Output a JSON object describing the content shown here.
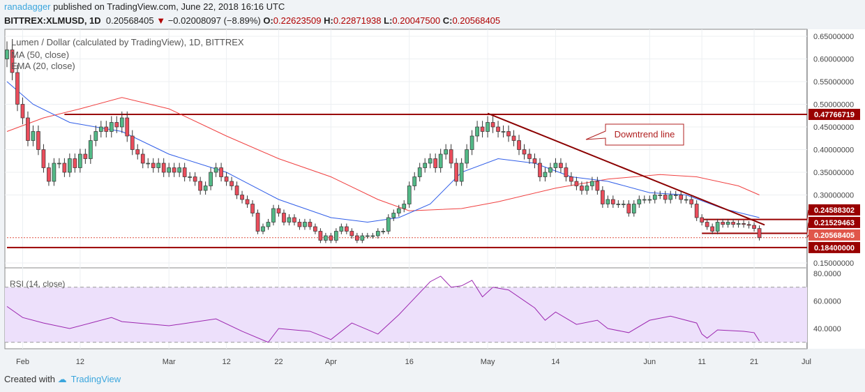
{
  "header": {
    "user": "ranadagger",
    "published": "published on TradingView.com, June 22, 2018 16:16 UTC",
    "symbol": "BITTREX:XLMUSD, 1D",
    "last": "0.20568405",
    "change": "−0.02008097 (−8.89%)",
    "o_label": "O:",
    "o": "0.22623509",
    "h_label": "H:",
    "h": "0.22871938",
    "l_label": "L:",
    "l": "0.20047500",
    "c_label": "C:",
    "c": "0.20568405"
  },
  "legend": {
    "title": "Lumen / Dollar (calculated by TradingView), 1D, BITTREX",
    "ma": "MA (50, close)",
    "ema": "EMA (20, close)",
    "rsi": "RSI (14, close)"
  },
  "footer": {
    "created": "Created with",
    "brand": "TradingView"
  },
  "colors": {
    "up": "#53b987",
    "down": "#eb4d5c",
    "ma": "#f04040",
    "ema": "#2f5de8",
    "level": "#990000",
    "rsi": "#9c27b0",
    "rsi_band": "#ede0fb"
  },
  "chart_data": [
    {
      "type": "candlestick",
      "start_date": "2018-01-29",
      "closes": [
        0.62,
        0.57,
        0.5,
        0.47,
        0.42,
        0.44,
        0.4,
        0.36,
        0.33,
        0.37,
        0.37,
        0.35,
        0.38,
        0.36,
        0.39,
        0.38,
        0.42,
        0.44,
        0.45,
        0.44,
        0.46,
        0.45,
        0.47,
        0.43,
        0.4,
        0.39,
        0.37,
        0.37,
        0.36,
        0.37,
        0.35,
        0.36,
        0.35,
        0.36,
        0.34,
        0.34,
        0.33,
        0.31,
        0.32,
        0.35,
        0.36,
        0.34,
        0.33,
        0.32,
        0.3,
        0.29,
        0.28,
        0.26,
        0.22,
        0.23,
        0.24,
        0.27,
        0.26,
        0.24,
        0.25,
        0.24,
        0.23,
        0.24,
        0.23,
        0.22,
        0.2,
        0.21,
        0.2,
        0.22,
        0.23,
        0.22,
        0.21,
        0.2,
        0.21,
        0.21,
        0.21,
        0.22,
        0.22,
        0.25,
        0.26,
        0.27,
        0.28,
        0.32,
        0.34,
        0.36,
        0.37,
        0.38,
        0.36,
        0.39,
        0.4,
        0.37,
        0.33,
        0.37,
        0.4,
        0.43,
        0.45,
        0.44,
        0.46,
        0.45,
        0.44,
        0.44,
        0.43,
        0.42,
        0.4,
        0.39,
        0.38,
        0.37,
        0.34,
        0.35,
        0.36,
        0.37,
        0.36,
        0.34,
        0.33,
        0.32,
        0.31,
        0.32,
        0.33,
        0.31,
        0.28,
        0.29,
        0.28,
        0.28,
        0.28,
        0.26,
        0.28,
        0.29,
        0.29,
        0.29,
        0.3,
        0.3,
        0.29,
        0.3,
        0.3,
        0.29,
        0.29,
        0.28,
        0.25,
        0.24,
        0.23,
        0.22,
        0.24,
        0.235,
        0.24,
        0.235,
        0.237,
        0.235,
        0.233,
        0.226,
        0.2057
      ],
      "ema20": [
        [
          "2018-01-29",
          0.55
        ],
        [
          "2018-02-03",
          0.5
        ],
        [
          "2018-02-10",
          0.46
        ],
        [
          "2018-02-20",
          0.44
        ],
        [
          "2018-03-01",
          0.39
        ],
        [
          "2018-03-12",
          0.35
        ],
        [
          "2018-03-22",
          0.29
        ],
        [
          "2018-04-01",
          0.25
        ],
        [
          "2018-04-08",
          0.24
        ],
        [
          "2018-04-14",
          0.25
        ],
        [
          "2018-04-20",
          0.28
        ],
        [
          "2018-04-26",
          0.35
        ],
        [
          "2018-05-03",
          0.38
        ],
        [
          "2018-05-10",
          0.37
        ],
        [
          "2018-05-17",
          0.34
        ],
        [
          "2018-05-24",
          0.33
        ],
        [
          "2018-06-01",
          0.305
        ],
        [
          "2018-06-08",
          0.3
        ],
        [
          "2018-06-15",
          0.27
        ],
        [
          "2018-06-22",
          0.25
        ]
      ],
      "ma50": [
        [
          "2018-01-29",
          0.44
        ],
        [
          "2018-02-05",
          0.47
        ],
        [
          "2018-02-12",
          0.49
        ],
        [
          "2018-02-20",
          0.515
        ],
        [
          "2018-03-01",
          0.49
        ],
        [
          "2018-03-12",
          0.43
        ],
        [
          "2018-03-22",
          0.38
        ],
        [
          "2018-04-01",
          0.34
        ],
        [
          "2018-04-10",
          0.29
        ],
        [
          "2018-04-16",
          0.265
        ],
        [
          "2018-04-26",
          0.27
        ],
        [
          "2018-05-03",
          0.285
        ],
        [
          "2018-05-14",
          0.315
        ],
        [
          "2018-05-24",
          0.335
        ],
        [
          "2018-06-03",
          0.345
        ],
        [
          "2018-06-10",
          0.34
        ],
        [
          "2018-06-18",
          0.32
        ],
        [
          "2018-06-22",
          0.3
        ]
      ],
      "levels": [
        {
          "value": 0.47766719,
          "label": "0.47766719",
          "from": "2018-02-09"
        },
        {
          "value": 0.24588302,
          "label": "0.24588302",
          "from": "2018-06-11"
        },
        {
          "value": 0.21529463,
          "label": "0.21529463",
          "from": "2018-06-11"
        },
        {
          "value": 0.20568405,
          "label": "0.20568405",
          "from": "2018-01-29",
          "style": "dotted"
        },
        {
          "value": 0.184,
          "label": "0.18400000",
          "from": "2018-01-29"
        }
      ],
      "trendline": {
        "from": [
          "2018-05-01",
          0.48
        ],
        "to": [
          "2018-06-23",
          0.234
        ],
        "annotation": "Downtrend line"
      },
      "yticks": [
        "0.65000000",
        "0.60000000",
        "0.55000000",
        "0.50000000",
        "0.45000000",
        "0.40000000",
        "0.35000000",
        "0.30000000",
        "0.15000000"
      ],
      "ylim": [
        0.1,
        0.67
      ],
      "xticks": [
        [
          "2018-02-01",
          "Feb"
        ],
        [
          "2018-02-12",
          "12"
        ],
        [
          "2018-03-01",
          "Mar"
        ],
        [
          "2018-03-12",
          "12"
        ],
        [
          "2018-03-22",
          "22"
        ],
        [
          "2018-04-01",
          "Apr"
        ],
        [
          "2018-04-16",
          "16"
        ],
        [
          "2018-05-01",
          "May"
        ],
        [
          "2018-05-14",
          "14"
        ],
        [
          "2018-06-01",
          "Jun"
        ],
        [
          "2018-06-11",
          "11"
        ],
        [
          "2018-06-21",
          "21"
        ],
        [
          "2018-07-01",
          "Jul"
        ]
      ]
    },
    {
      "type": "line",
      "name": "RSI (14, close)",
      "values": [
        [
          "2018-01-29",
          56
        ],
        [
          "2018-02-01",
          48
        ],
        [
          "2018-02-05",
          44
        ],
        [
          "2018-02-10",
          40
        ],
        [
          "2018-02-14",
          44
        ],
        [
          "2018-02-18",
          48
        ],
        [
          "2018-02-20",
          45
        ],
        [
          "2018-03-01",
          42
        ],
        [
          "2018-03-10",
          47
        ],
        [
          "2018-03-15",
          38
        ],
        [
          "2018-03-20",
          30
        ],
        [
          "2018-03-22",
          40
        ],
        [
          "2018-03-28",
          38
        ],
        [
          "2018-04-01",
          32
        ],
        [
          "2018-04-05",
          44
        ],
        [
          "2018-04-10",
          36
        ],
        [
          "2018-04-14",
          50
        ],
        [
          "2018-04-16",
          58
        ],
        [
          "2018-04-20",
          74
        ],
        [
          "2018-04-22",
          78
        ],
        [
          "2018-04-24",
          70
        ],
        [
          "2018-04-26",
          71
        ],
        [
          "2018-04-28",
          75
        ],
        [
          "2018-04-30",
          63
        ],
        [
          "2018-05-02",
          70
        ],
        [
          "2018-05-05",
          68
        ],
        [
          "2018-05-10",
          55
        ],
        [
          "2018-05-12",
          46
        ],
        [
          "2018-05-14",
          52
        ],
        [
          "2018-05-18",
          43
        ],
        [
          "2018-05-22",
          46
        ],
        [
          "2018-05-24",
          40
        ],
        [
          "2018-05-28",
          37
        ],
        [
          "2018-06-01",
          46
        ],
        [
          "2018-06-05",
          49
        ],
        [
          "2018-06-10",
          44
        ],
        [
          "2018-06-11",
          36
        ],
        [
          "2018-06-12",
          33
        ],
        [
          "2018-06-14",
          39
        ],
        [
          "2018-06-19",
          38
        ],
        [
          "2018-06-21",
          37
        ],
        [
          "2018-06-22",
          31
        ]
      ],
      "bands": [
        30,
        70
      ],
      "yticks": [
        "80.0000",
        "60.0000",
        "40.0000"
      ]
    }
  ]
}
